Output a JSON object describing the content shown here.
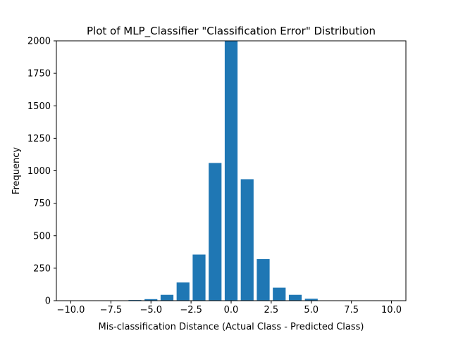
{
  "chart_data": {
    "type": "bar",
    "title": "Plot of MLP_Classifier \"Classification Error\" Distribution",
    "xlabel": "Mis-classification Distance (Actual Class - Predicted Class)",
    "ylabel": "Frequency",
    "xlim": [
      -10.9,
      10.9
    ],
    "ylim": [
      0,
      2000
    ],
    "bar_width": 0.8,
    "bar_color": "#1f77b4",
    "grid": false,
    "x": [
      -6,
      -5,
      -4,
      -3,
      -2,
      -1,
      0,
      1,
      2,
      3,
      4,
      5
    ],
    "values": [
      5,
      12,
      45,
      140,
      355,
      1060,
      2000,
      935,
      320,
      100,
      45,
      15
    ],
    "xticks": [
      {
        "value": -10,
        "label": "−10.0"
      },
      {
        "value": -7.5,
        "label": "−7.5"
      },
      {
        "value": -5,
        "label": "−5.0"
      },
      {
        "value": -2.5,
        "label": "−2.5"
      },
      {
        "value": 0,
        "label": "0.0"
      },
      {
        "value": 2.5,
        "label": "2.5"
      },
      {
        "value": 5,
        "label": "5.0"
      },
      {
        "value": 7.5,
        "label": "7.5"
      },
      {
        "value": 10,
        "label": "10.0"
      }
    ],
    "yticks": [
      {
        "value": 0,
        "label": "0"
      },
      {
        "value": 250,
        "label": "250"
      },
      {
        "value": 500,
        "label": "500"
      },
      {
        "value": 750,
        "label": "750"
      },
      {
        "value": 1000,
        "label": "1000"
      },
      {
        "value": 1250,
        "label": "1250"
      },
      {
        "value": 1500,
        "label": "1500"
      },
      {
        "value": 1750,
        "label": "1750"
      },
      {
        "value": 2000,
        "label": "2000"
      }
    ]
  }
}
